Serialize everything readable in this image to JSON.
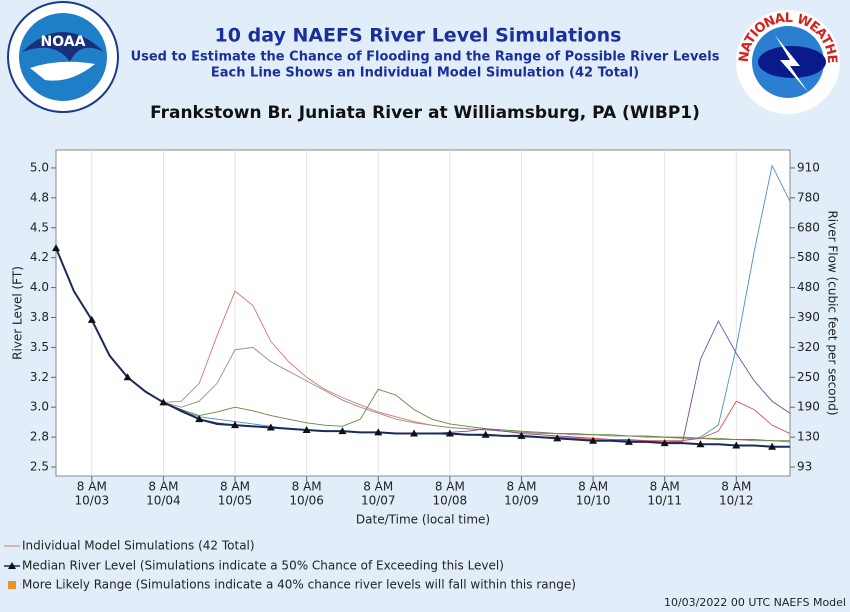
{
  "logos": {
    "noaa": "NOAA",
    "nws": "NATIONAL WEATHER SERVICE"
  },
  "chart_data": {
    "type": "line",
    "title": "10 day NAEFS River Level Simulations",
    "subtitle": [
      "Used to Estimate the Chance of Flooding and the Range of Possible River Levels",
      "Each Line Shows an Individual Model Simulation (42 Total)"
    ],
    "station": "Frankstown Br. Juniata River at Williamsburg, PA (WIBP1)",
    "ylabel": "River Level (FT)",
    "y2label": "River Flow (cubic feet per second)",
    "xlabel": "Date/Time (local time)",
    "footer": "10/03/2022 00 UTC NAEFS Model",
    "xlim": [
      0,
      41
    ],
    "ylim": [
      2.425,
      5.15
    ],
    "grid": true,
    "xticks": [
      {
        "value": 2,
        "label": [
          "8 AM",
          "10/03"
        ]
      },
      {
        "value": 6,
        "label": [
          "8 AM",
          "10/04"
        ]
      },
      {
        "value": 10,
        "label": [
          "8 AM",
          "10/05"
        ]
      },
      {
        "value": 14,
        "label": [
          "8 AM",
          "10/06"
        ]
      },
      {
        "value": 18,
        "label": [
          "8 AM",
          "10/07"
        ]
      },
      {
        "value": 22,
        "label": [
          "8 AM",
          "10/08"
        ]
      },
      {
        "value": 26,
        "label": [
          "8 AM",
          "10/09"
        ]
      },
      {
        "value": 30,
        "label": [
          "8 AM",
          "10/10"
        ]
      },
      {
        "value": 34,
        "label": [
          "8 AM",
          "10/11"
        ]
      },
      {
        "value": 38,
        "label": [
          "8 AM",
          "10/12"
        ]
      }
    ],
    "yticks": [
      2.5,
      {
        "value": 2.75,
        "label": "2.8"
      },
      {
        "value": 3,
        "label": "3.0"
      },
      {
        "value": 3.25,
        "label": "3.2"
      },
      3.5,
      {
        "value": 3.75,
        "label": "3.8"
      },
      {
        "value": 4,
        "label": "4.0"
      },
      {
        "value": 4.25,
        "label": "4.2"
      },
      4.5,
      {
        "value": 4.75,
        "label": "4.8"
      },
      {
        "value": 5,
        "label": "5.0"
      }
    ],
    "y2ticks": [
      {
        "value": 93,
        "level": 2.5
      },
      {
        "value": 130,
        "level": 2.75
      },
      {
        "value": 190,
        "level": 3
      },
      {
        "value": 250,
        "level": 3.25
      },
      {
        "value": 320,
        "level": 3.5
      },
      {
        "value": 390,
        "level": 3.75
      },
      {
        "value": 480,
        "level": 4
      },
      {
        "value": 580,
        "level": 4.25
      },
      {
        "value": 680,
        "level": 4.5
      },
      {
        "value": 780,
        "level": 4.75
      },
      {
        "value": 910,
        "level": 5
      }
    ],
    "legend": [
      "Individual Model Simulations (42 Total)",
      "Median River Level (Simulations indicate a 50% Chance of Exceeding this Level)",
      "More Likely Range (Simulations indicate a 40% chance river levels will fall within this range)"
    ],
    "range_color": "#f0902a",
    "series": [
      {
        "name": "Simulation",
        "color": "#d9786a",
        "values": [
          4.33,
          3.97,
          3.73,
          3.43,
          3.25,
          3.13,
          3.04,
          3.05,
          3.2,
          3.6,
          3.97,
          3.85,
          3.55,
          3.38,
          3.25,
          3.15,
          3.08,
          3.02,
          2.96,
          2.92,
          2.88,
          2.85,
          2.83,
          2.82,
          2.81,
          2.8,
          2.79,
          2.79,
          2.78,
          2.77,
          2.77,
          2.76,
          2.76,
          2.75,
          2.75,
          2.74,
          2.74,
          2.73,
          2.73,
          2.72,
          2.72,
          2.71
        ]
      },
      {
        "name": "Simulation",
        "color": "#9a8f86",
        "values": [
          4.33,
          3.97,
          3.73,
          3.43,
          3.25,
          3.13,
          3.04,
          3.0,
          3.05,
          3.2,
          3.48,
          3.5,
          3.38,
          3.3,
          3.22,
          3.14,
          3.06,
          3.0,
          2.95,
          2.9,
          2.87,
          2.85,
          2.83,
          2.82,
          2.81,
          2.8,
          2.79,
          2.78,
          2.78,
          2.77,
          2.77,
          2.76,
          2.76,
          2.75,
          2.75,
          2.74,
          2.74,
          2.73,
          2.73,
          2.72,
          2.72,
          2.71
        ]
      },
      {
        "name": "Simulation",
        "color": "#5f8a3c",
        "values": [
          4.33,
          3.97,
          3.73,
          3.43,
          3.25,
          3.13,
          3.04,
          2.98,
          2.93,
          2.96,
          3.0,
          2.97,
          2.93,
          2.9,
          2.87,
          2.85,
          2.84,
          2.9,
          3.15,
          3.1,
          2.98,
          2.9,
          2.86,
          2.84,
          2.82,
          2.81,
          2.8,
          2.79,
          2.78,
          2.78,
          2.77,
          2.77,
          2.76,
          2.76,
          2.75,
          2.75,
          2.74,
          2.74,
          2.73,
          2.73,
          2.72,
          2.72
        ]
      },
      {
        "name": "Simulation",
        "color": "#7a4a9a",
        "values": [
          4.33,
          3.97,
          3.73,
          3.43,
          3.25,
          3.13,
          3.04,
          2.96,
          2.9,
          2.87,
          2.85,
          2.84,
          2.83,
          2.82,
          2.81,
          2.8,
          2.8,
          2.79,
          2.79,
          2.78,
          2.78,
          2.78,
          2.79,
          2.8,
          2.82,
          2.8,
          2.78,
          2.77,
          2.76,
          2.75,
          2.74,
          2.73,
          2.72,
          2.72,
          2.71,
          2.71,
          3.4,
          3.72,
          3.45,
          3.22,
          3.05,
          2.95
        ]
      },
      {
        "name": "Simulation",
        "color": "#4a90c0",
        "values": [
          4.33,
          3.97,
          3.73,
          3.43,
          3.25,
          3.13,
          3.04,
          2.97,
          2.92,
          2.9,
          2.88,
          2.86,
          2.84,
          2.82,
          2.81,
          2.8,
          2.8,
          2.79,
          2.79,
          2.78,
          2.78,
          2.78,
          2.77,
          2.77,
          2.76,
          2.76,
          2.75,
          2.75,
          2.74,
          2.73,
          2.73,
          2.72,
          2.72,
          2.71,
          2.71,
          2.72,
          2.75,
          2.85,
          3.5,
          4.3,
          5.02,
          4.72
        ]
      },
      {
        "name": "Simulation",
        "color": "#e05050",
        "values": [
          4.33,
          3.97,
          3.73,
          3.43,
          3.25,
          3.13,
          3.04,
          2.97,
          2.9,
          2.86,
          2.85,
          2.84,
          2.83,
          2.82,
          2.81,
          2.8,
          2.8,
          2.79,
          2.79,
          2.78,
          2.78,
          2.78,
          2.78,
          2.77,
          2.77,
          2.76,
          2.76,
          2.75,
          2.75,
          2.74,
          2.74,
          2.73,
          2.73,
          2.72,
          2.72,
          2.72,
          2.74,
          2.8,
          3.05,
          2.98,
          2.85,
          2.78
        ]
      },
      {
        "name": "Median",
        "color": "#1a2a5a",
        "values": [
          4.33,
          3.97,
          3.73,
          3.43,
          3.25,
          3.13,
          3.04,
          2.97,
          2.9,
          2.86,
          2.85,
          2.84,
          2.83,
          2.82,
          2.81,
          2.8,
          2.8,
          2.79,
          2.79,
          2.78,
          2.78,
          2.78,
          2.78,
          2.77,
          2.77,
          2.76,
          2.76,
          2.75,
          2.74,
          2.73,
          2.72,
          2.72,
          2.71,
          2.71,
          2.7,
          2.7,
          2.69,
          2.69,
          2.68,
          2.68,
          2.67,
          2.67
        ]
      }
    ]
  }
}
